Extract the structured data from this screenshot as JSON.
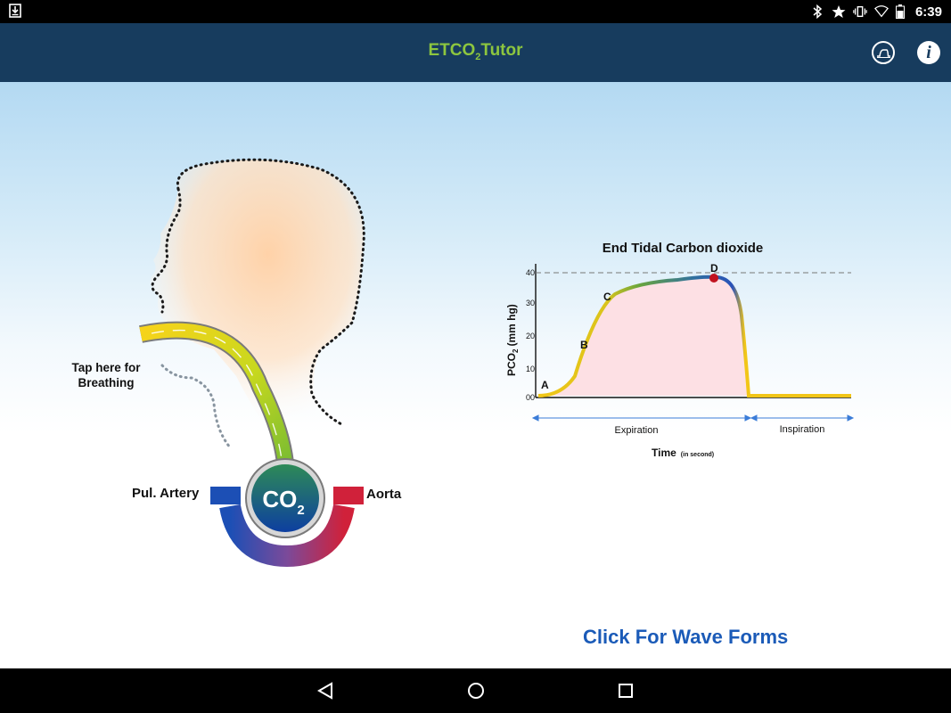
{
  "status_bar": {
    "time": "6:39",
    "icons": [
      "download-icon",
      "bluetooth-icon",
      "star-icon",
      "vibrate-icon",
      "wifi-icon",
      "battery-icon"
    ]
  },
  "app_bar": {
    "title_main": "ETCO",
    "title_sub": "2",
    "title_tail": "Tutor",
    "title_color": "#8dc63f",
    "background": "#173c5e"
  },
  "diagram": {
    "tap_label_line1": "Tap here for",
    "tap_label_line2": "Breathing",
    "pul_artery": "Pul. Artery",
    "aorta": "Aorta",
    "co2_main": "CO",
    "co2_sub": "2"
  },
  "graph": {
    "title": "End Tidal Carbon dioxide",
    "ylabel_main": "PCO",
    "ylabel_sub": "2",
    "ylabel_tail": "(mm hg)",
    "ticks": [
      "00",
      "10",
      "20",
      "30",
      "40"
    ],
    "points": {
      "a": "A",
      "b": "B",
      "c": "C",
      "d": "D"
    },
    "expiration": "Expiration",
    "inspiration": "Inspiration",
    "xlabel": "Time",
    "xlabel_note": "(in second)"
  },
  "link": {
    "label": "Click For Wave Forms"
  }
}
